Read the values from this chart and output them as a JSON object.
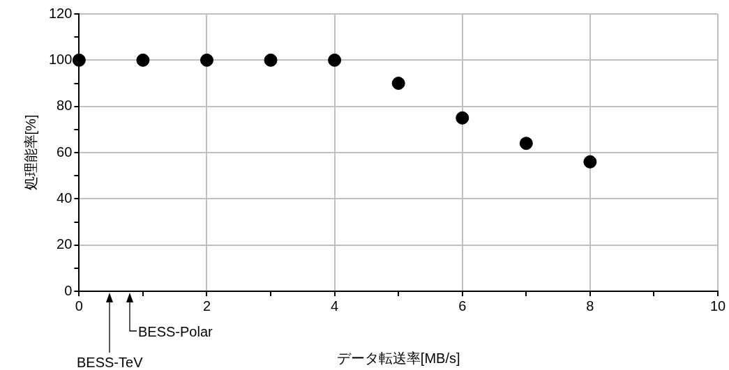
{
  "chart_data": {
    "type": "scatter",
    "xlabel": "データ転送率[MB/s]",
    "ylabel": "処理能率[%]",
    "x": [
      0,
      1,
      2,
      3,
      4,
      5,
      6,
      7,
      8
    ],
    "series": [
      {
        "color": "#000000",
        "values": [
          100,
          100,
          100,
          100,
          100,
          90,
          75,
          64,
          56
        ]
      }
    ],
    "xlim": [
      0,
      10
    ],
    "xticks": [
      0,
      {
        "value": 1,
        "label": null
      },
      2,
      {
        "value": 3,
        "label": null
      },
      4,
      {
        "value": 5,
        "label": null
      },
      6,
      {
        "value": 7,
        "label": null
      },
      8,
      {
        "value": 9,
        "label": null
      },
      10
    ],
    "ylim": [
      0,
      120
    ],
    "yticks": [
      0,
      {
        "value": 10,
        "label": null
      },
      20,
      {
        "value": 30,
        "label": null
      },
      40,
      {
        "value": 50,
        "label": null
      },
      60,
      {
        "value": 70,
        "label": null
      },
      80,
      {
        "value": 90,
        "label": null
      },
      100,
      {
        "value": 110,
        "label": null
      },
      120
    ],
    "grid": true,
    "legend": false,
    "marker": "circle",
    "annotations": [
      "BESS-TeV",
      "BESS-Polar"
    ]
  }
}
